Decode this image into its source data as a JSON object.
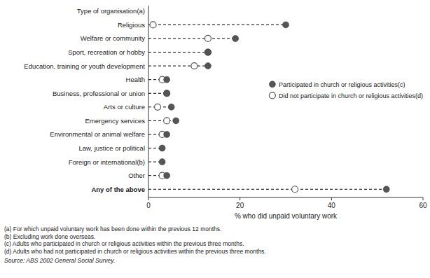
{
  "chart_data": {
    "type": "dot",
    "categories": [
      "Type of organisation(a)",
      "Religious",
      "Welfare or community",
      "Sport, recreation or hobby",
      "Education, training or youth development",
      "Health",
      "Business, professional or union",
      "Arts or culture",
      "Emergency services",
      "Environmental or animal welfare",
      "Law, justice or political",
      "Foreign or international(b)",
      "Other",
      "Any of the above"
    ],
    "series": [
      {
        "name": "Participated in church or religious activities(c)",
        "color": "#555555",
        "marker": "filled-circle",
        "values": [
          null,
          30,
          19,
          13,
          13,
          4,
          4,
          5,
          6,
          4,
          3,
          3,
          4,
          52
        ]
      },
      {
        "name": "Did not participate in church or religious activities(d)",
        "color": "#ffffff",
        "marker": "open-circle",
        "values": [
          null,
          1,
          13,
          13,
          10,
          3,
          4,
          2,
          4,
          3,
          null,
          null,
          3,
          32
        ]
      }
    ],
    "xlabel": "% who did unpaid voluntary work",
    "xlim": [
      0,
      60
    ],
    "xticks": [
      0,
      20,
      40,
      60
    ],
    "line_style": "dashed",
    "grid": false,
    "legend": "right",
    "footnotes": [
      "(a) For which unpaid voluntary work has been done within the previous 12 months.",
      "(b) Excluding work done overseas.",
      "(c) Adults who participated in church or religious activities within the previous three months.",
      "(d) Adults who had not participated in church or religious activities within the previous three months."
    ],
    "source": "Source: ABS 2002 General Social Survey."
  }
}
